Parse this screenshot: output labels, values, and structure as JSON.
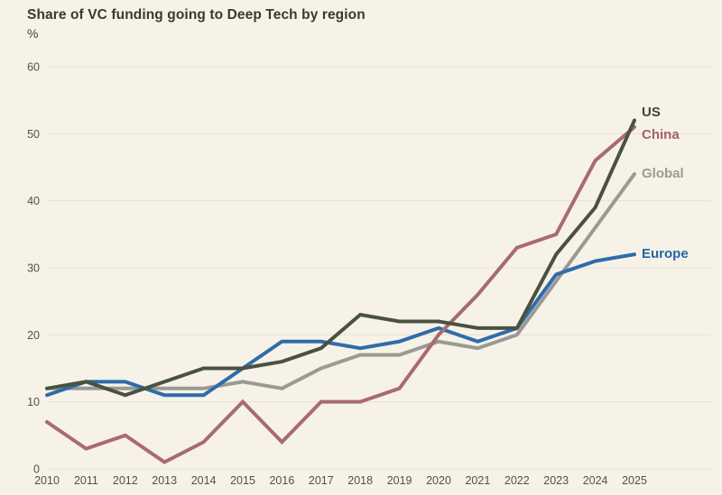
{
  "header": {
    "title": "Share of VC funding going to Deep Tech by region",
    "unit": "%"
  },
  "colors": {
    "background": "#f7f2e7",
    "gridline": "#e7e2d4",
    "title_text": "#393833",
    "tick_text": "#52504b"
  },
  "chart_data": {
    "type": "line",
    "title": "Share of VC funding going to Deep Tech by region",
    "ylabel": "%",
    "xlabel": "",
    "x": [
      2010,
      2011,
      2012,
      2013,
      2014,
      2015,
      2016,
      2017,
      2018,
      2019,
      2020,
      2021,
      2022,
      2023,
      2024,
      2025
    ],
    "ylim": [
      0,
      60
    ],
    "yticks": [
      0,
      10,
      20,
      30,
      40,
      50,
      60
    ],
    "grid": true,
    "legend_position": "end-of-line labels at right",
    "series": [
      {
        "name": "US",
        "color": "#4a5140",
        "label_color": "#3d4437",
        "label_dy": -8,
        "values": [
          12,
          13,
          11,
          13,
          15,
          15,
          16,
          18,
          23,
          22,
          22,
          21,
          21,
          32,
          39,
          52
        ]
      },
      {
        "name": "China",
        "color": "#a86b6e",
        "label_color": "#a2626a",
        "label_dy": 9,
        "values": [
          7,
          3,
          5,
          1,
          4,
          10,
          4,
          10,
          10,
          12,
          20,
          26,
          33,
          35,
          46,
          51
        ]
      },
      {
        "name": "Global",
        "color": "#9a9a94",
        "label_color": "#9a9a94",
        "label_dy": 0,
        "values": [
          12,
          12,
          12,
          12,
          12,
          13,
          12,
          15,
          17,
          17,
          19,
          18,
          20,
          28,
          36,
          44
        ]
      },
      {
        "name": "Europe",
        "color": "#2e6cab",
        "label_color": "#2166a8",
        "label_dy": 0,
        "values": [
          11,
          13,
          13,
          11,
          11,
          15,
          19,
          19,
          18,
          19,
          21,
          19,
          21,
          29,
          31,
          32
        ]
      }
    ],
    "draw_order": [
      "Global",
      "Europe",
      "China",
      "US"
    ]
  }
}
